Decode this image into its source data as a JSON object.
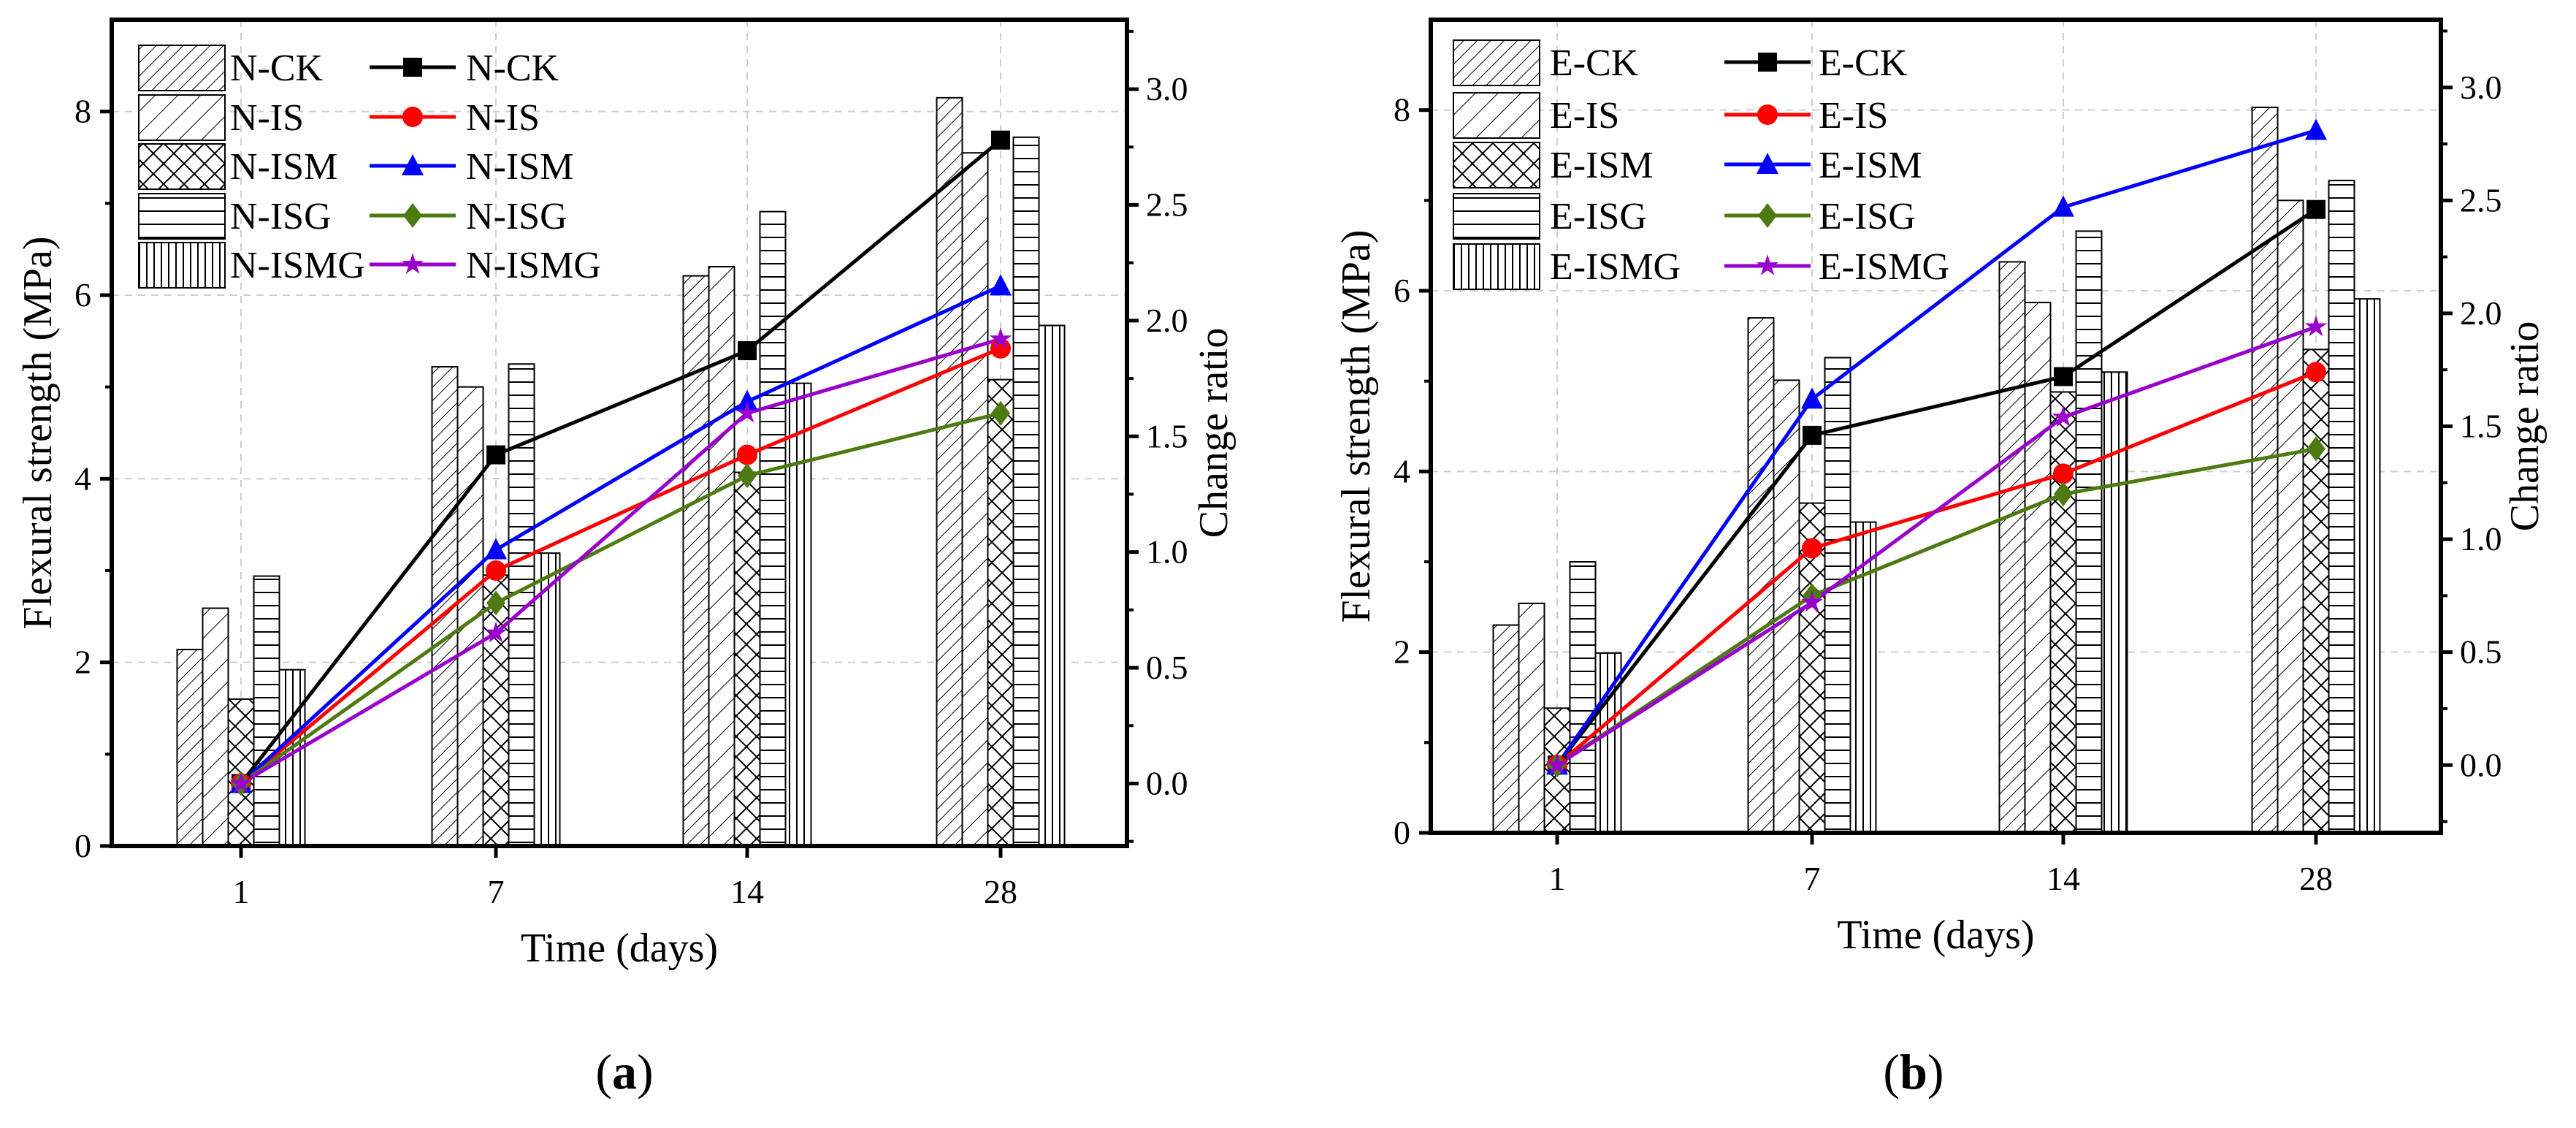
{
  "chart_data": [
    {
      "type": "bar+line",
      "panel_label": "a",
      "xlabel": "Time (days)",
      "ylabel": "Flexural strength (MPa)",
      "y2label": "Change ratio",
      "categories": [
        "1",
        "7",
        "14",
        "28"
      ],
      "ylim": [
        0,
        9
      ],
      "y_ticks": [
        "0",
        "2",
        "4",
        "6",
        "8"
      ],
      "y2lim": [
        -0.27,
        3.3
      ],
      "y2_ticks": [
        "0.0",
        "0.5",
        "1.0",
        "1.5",
        "2.0",
        "2.5",
        "3.0"
      ],
      "grid": true,
      "legend_placement": "top-left",
      "bar_series": [
        {
          "name": "N-CK",
          "pattern": "dense-diagonal",
          "values": [
            2.14,
            5.22,
            6.21,
            8.15
          ]
        },
        {
          "name": "N-IS",
          "pattern": "wide-diagonal",
          "values": [
            2.59,
            5.0,
            6.31,
            7.55
          ]
        },
        {
          "name": "N-ISM",
          "pattern": "crosshatch",
          "values": [
            1.6,
            2.95,
            4.07,
            5.08
          ]
        },
        {
          "name": "N-ISG",
          "pattern": "horizontal",
          "values": [
            2.94,
            5.25,
            6.91,
            7.72
          ]
        },
        {
          "name": "N-ISMG",
          "pattern": "vertical",
          "values": [
            1.92,
            3.19,
            5.04,
            5.67
          ]
        }
      ],
      "line_series": [
        {
          "name": "N-CK",
          "color": "#000000",
          "marker": "square",
          "values": [
            0,
            1.42,
            1.87,
            2.78
          ]
        },
        {
          "name": "N-IS",
          "color": "#ff0000",
          "marker": "circle",
          "values": [
            0,
            0.92,
            1.42,
            1.88
          ]
        },
        {
          "name": "N-ISM",
          "color": "#0000ff",
          "marker": "triangle",
          "values": [
            0,
            1.01,
            1.65,
            2.15
          ]
        },
        {
          "name": "N-ISG",
          "color": "#4e7a12",
          "marker": "diamond",
          "values": [
            0,
            0.78,
            1.33,
            1.6
          ]
        },
        {
          "name": "N-ISMG",
          "color": "#9900cc",
          "marker": "star",
          "values": [
            0,
            0.65,
            1.6,
            1.92
          ]
        }
      ]
    },
    {
      "type": "bar+line",
      "panel_label": "b",
      "xlabel": "Time (days)",
      "ylabel": "Flexural strength (MPa)",
      "y2label": "Change ratio",
      "categories": [
        "1",
        "7",
        "14",
        "28"
      ],
      "ylim": [
        0,
        9
      ],
      "y_ticks": [
        "0",
        "2",
        "4",
        "6",
        "8"
      ],
      "y2lim": [
        -0.3,
        3.3
      ],
      "y2_ticks": [
        "0.0",
        "0.5",
        "1.0",
        "1.5",
        "2.0",
        "2.5",
        "3.0"
      ],
      "grid": true,
      "legend_placement": "top-left",
      "bar_series": [
        {
          "name": "E-CK",
          "pattern": "dense-diagonal",
          "values": [
            2.3,
            5.7,
            6.32,
            8.03
          ]
        },
        {
          "name": "E-IS",
          "pattern": "wide-diagonal",
          "values": [
            2.54,
            5.01,
            5.87,
            7.0
          ]
        },
        {
          "name": "E-ISM",
          "pattern": "crosshatch",
          "values": [
            1.38,
            3.65,
            4.88,
            5.35
          ]
        },
        {
          "name": "E-ISG",
          "pattern": "horizontal",
          "values": [
            3.0,
            5.26,
            6.66,
            7.22
          ]
        },
        {
          "name": "E-ISMG",
          "pattern": "vertical",
          "values": [
            1.99,
            3.44,
            5.1,
            5.91
          ]
        }
      ],
      "line_series": [
        {
          "name": "E-CK",
          "color": "#000000",
          "marker": "square",
          "values": [
            0,
            1.46,
            1.72,
            2.46
          ]
        },
        {
          "name": "E-IS",
          "color": "#ff0000",
          "marker": "circle",
          "values": [
            0,
            0.96,
            1.29,
            1.74
          ]
        },
        {
          "name": "E-ISM",
          "color": "#0000ff",
          "marker": "triangle",
          "values": [
            0,
            1.62,
            2.47,
            2.81
          ]
        },
        {
          "name": "E-ISG",
          "color": "#4e7a12",
          "marker": "diamond",
          "values": [
            0,
            0.75,
            1.2,
            1.4
          ]
        },
        {
          "name": "E-ISMG",
          "color": "#9900cc",
          "marker": "star",
          "values": [
            0,
            0.72,
            1.54,
            1.94
          ]
        }
      ]
    }
  ]
}
